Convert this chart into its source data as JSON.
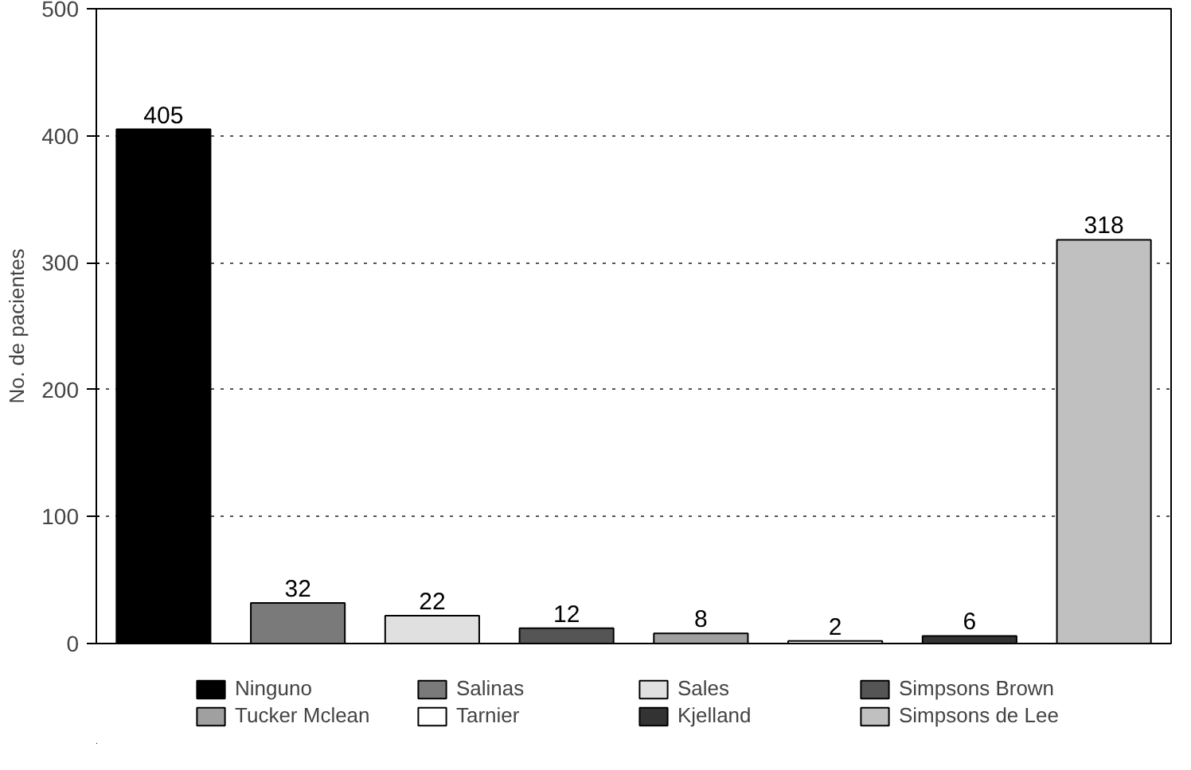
{
  "chart_data": {
    "type": "bar",
    "ylabel": "No. de pacientes",
    "categories": [
      null,
      null,
      null,
      null,
      null,
      null,
      null,
      null
    ],
    "series": [
      {
        "name": "Ninguno",
        "color": "#000000",
        "values": [
          405,
          null,
          null,
          null,
          null,
          null,
          null,
          null
        ]
      },
      {
        "name": "Salinas",
        "color": "#7a7a7a",
        "values": [
          null,
          32,
          null,
          null,
          null,
          null,
          null,
          null
        ]
      },
      {
        "name": "Sales",
        "color": "#e0e0e0",
        "values": [
          null,
          null,
          22,
          null,
          null,
          null,
          null,
          null
        ]
      },
      {
        "name": "Simpsons Brown",
        "color": "#555555",
        "values": [
          null,
          null,
          null,
          12,
          null,
          null,
          null,
          null
        ]
      },
      {
        "name": "Tucker Mclean",
        "color": "#a0a0a0",
        "values": [
          null,
          null,
          null,
          null,
          8,
          null,
          null,
          null
        ]
      },
      {
        "name": "Tarnier",
        "color": "#ffffff",
        "values": [
          null,
          null,
          null,
          null,
          null,
          2,
          null,
          null
        ]
      },
      {
        "name": "Kjelland",
        "color": "#333333",
        "values": [
          null,
          null,
          null,
          null,
          null,
          null,
          6,
          null
        ]
      },
      {
        "name": "Simpsons de Lee",
        "color": "#c0c0c0",
        "values": [
          null,
          null,
          null,
          null,
          null,
          null,
          null,
          318
        ]
      }
    ],
    "ylim": [
      0,
      500
    ],
    "yticks": [
      0,
      100,
      200,
      300,
      400,
      500
    ],
    "grid": "y",
    "legend": "bottom",
    "data_labels": true
  }
}
